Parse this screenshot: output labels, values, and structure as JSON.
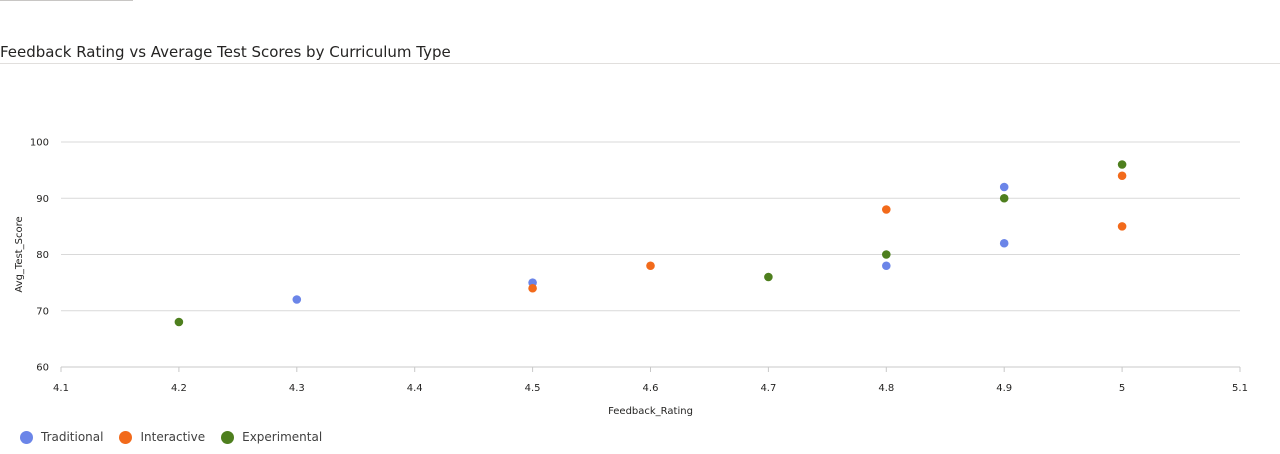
{
  "chart_data": {
    "type": "scatter",
    "title": "Feedback Rating vs Average Test Scores by Curriculum Type",
    "xlabel": "Feedback_Rating",
    "ylabel": "Avg_Test_Score",
    "xlim": [
      4.1,
      5.1
    ],
    "ylim": [
      60,
      100
    ],
    "x_ticks": [
      "4.1",
      "4.2",
      "4.3",
      "4.4",
      "4.5",
      "4.6",
      "4.7",
      "4.8",
      "4.9",
      "5",
      "5.1"
    ],
    "y_ticks": [
      "60",
      "70",
      "80",
      "90",
      "100"
    ],
    "grid": true,
    "legend_position": "bottom-left",
    "series": [
      {
        "name": "Traditional",
        "color": "#6b85e8",
        "points": [
          [
            4.3,
            72
          ],
          [
            4.5,
            75
          ],
          [
            4.8,
            78
          ],
          [
            4.9,
            92
          ],
          [
            4.9,
            82
          ]
        ]
      },
      {
        "name": "Interactive",
        "color": "#f26a1b",
        "points": [
          [
            4.5,
            74
          ],
          [
            4.6,
            78
          ],
          [
            4.8,
            88
          ],
          [
            5.0,
            94
          ],
          [
            5.0,
            85
          ]
        ]
      },
      {
        "name": "Experimental",
        "color": "#4e7f1e",
        "points": [
          [
            4.2,
            68
          ],
          [
            4.7,
            76
          ],
          [
            4.8,
            80
          ],
          [
            4.9,
            90
          ],
          [
            5.0,
            96
          ]
        ]
      }
    ]
  }
}
